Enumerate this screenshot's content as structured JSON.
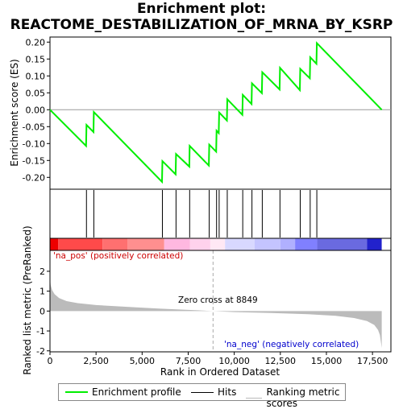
{
  "title_line1": "Enrichment plot:",
  "title_line2": "REACTOME_DESTABILIZATION_OF_MRNA_BY_KSRP",
  "colors": {
    "enrichment_line": "#00ee00",
    "hits": "#000000",
    "ranking_fill": "#bbbbbb",
    "zero_line": "#aaaaaa",
    "pos_label": "#cc0000",
    "neg_label": "#0000cc"
  },
  "legend": {
    "enrichment_profile": "Enrichment profile",
    "hits": "Hits",
    "ranking_metric_scores": "Ranking metric scores"
  },
  "chart_data": [
    {
      "type": "line",
      "name": "enrichment-panel",
      "ylabel": "Enrichment score (ES)",
      "xlim": [
        0,
        18500
      ],
      "ylim": [
        -0.235,
        0.215
      ],
      "yticks": [
        -0.2,
        -0.15,
        -0.1,
        -0.05,
        0.0,
        0.05,
        0.1,
        0.15,
        0.2
      ],
      "ytick_labels": [
        "-0.20",
        "-0.15",
        "-0.10",
        "-0.05",
        "0.00",
        "0.05",
        "0.10",
        "0.15",
        "0.20"
      ],
      "grid": false,
      "series": [
        {
          "x": [
            0,
            1960,
            1980,
            2360,
            2380,
            6080,
            6100,
            6820,
            6840,
            7560,
            7580,
            8620,
            8640,
            9020,
            9040,
            9160,
            9180,
            9600,
            9620,
            10440,
            10460,
            10940,
            10960,
            11500,
            11520,
            12460,
            12480,
            13560,
            13580,
            14100,
            14120,
            14460,
            14480,
            18000
          ],
          "y": [
            0.0,
            -0.107,
            -0.045,
            -0.066,
            -0.007,
            -0.213,
            -0.152,
            -0.191,
            -0.131,
            -0.168,
            -0.107,
            -0.165,
            -0.103,
            -0.124,
            -0.062,
            -0.069,
            -0.008,
            -0.032,
            0.031,
            -0.015,
            0.044,
            0.017,
            0.078,
            0.049,
            0.111,
            0.06,
            0.124,
            0.058,
            0.121,
            0.093,
            0.155,
            0.136,
            0.197,
            0.0
          ]
        }
      ]
    },
    {
      "type": "scatter",
      "name": "hits-panel",
      "hits_x": [
        1980,
        2380,
        6100,
        6840,
        7580,
        8640,
        9040,
        9180,
        9620,
        10460,
        10960,
        11520,
        12480,
        13580,
        14120,
        14480
      ]
    },
    {
      "type": "heatmap",
      "name": "rank-color-bar",
      "segments": [
        {
          "from": 0,
          "to": 450,
          "color": "#ee0000"
        },
        {
          "from": 450,
          "to": 2850,
          "color": "#ff4a4a"
        },
        {
          "from": 2850,
          "to": 4200,
          "color": "#ff7070"
        },
        {
          "from": 4200,
          "to": 6200,
          "color": "#ff8f8f"
        },
        {
          "from": 6200,
          "to": 7600,
          "color": "#ffb8e0"
        },
        {
          "from": 7600,
          "to": 8700,
          "color": "#ffd2ec"
        },
        {
          "from": 8700,
          "to": 9500,
          "color": "#ffe8f4"
        },
        {
          "from": 9500,
          "to": 11100,
          "color": "#d8d8ff"
        },
        {
          "from": 11100,
          "to": 12500,
          "color": "#c4c4ff"
        },
        {
          "from": 12500,
          "to": 13300,
          "color": "#b0b0ff"
        },
        {
          "from": 13300,
          "to": 14500,
          "color": "#8080ff"
        },
        {
          "from": 14500,
          "to": 17200,
          "color": "#6a6ae0"
        },
        {
          "from": 17200,
          "to": 18000,
          "color": "#2222cc"
        }
      ]
    },
    {
      "type": "area",
      "name": "ranking-panel",
      "xlabel": "Rank in Ordered Dataset",
      "ylabel": "Ranked list metric (PreRanked)",
      "xlim": [
        0,
        18500
      ],
      "ylim": [
        -2.05,
        3.05
      ],
      "xticks": [
        0,
        2500,
        5000,
        7500,
        10000,
        12500,
        15000,
        17500
      ],
      "xtick_labels": [
        "0",
        "2,500",
        "5,000",
        "7,500",
        "10,000",
        "12,500",
        "15,000",
        "17,500"
      ],
      "yticks": [
        -2,
        -1,
        0,
        1,
        2
      ],
      "ytick_labels": [
        "-2",
        "-1",
        "0",
        "1",
        "2"
      ],
      "zero_cross_x": 8849,
      "series": [
        {
          "x": [
            0,
            40,
            120,
            250,
            500,
            900,
            1500,
            2500,
            4000,
            6000,
            8000,
            8849,
            10000,
            12000,
            14000,
            15500,
            16500,
            17200,
            17600,
            17800,
            17900,
            17950,
            18000
          ],
          "y": [
            1.65,
            1.3,
            1.05,
            0.85,
            0.65,
            0.5,
            0.4,
            0.3,
            0.22,
            0.12,
            0.04,
            0.0,
            -0.05,
            -0.1,
            -0.16,
            -0.24,
            -0.35,
            -0.5,
            -0.7,
            -0.95,
            -1.2,
            -1.5,
            -1.85
          ]
        }
      ],
      "annotations": {
        "pos": "'na_pos' (positively correlated)",
        "neg": "'na_neg' (negatively correlated)",
        "zero_cross": "Zero cross at 8849"
      }
    }
  ]
}
